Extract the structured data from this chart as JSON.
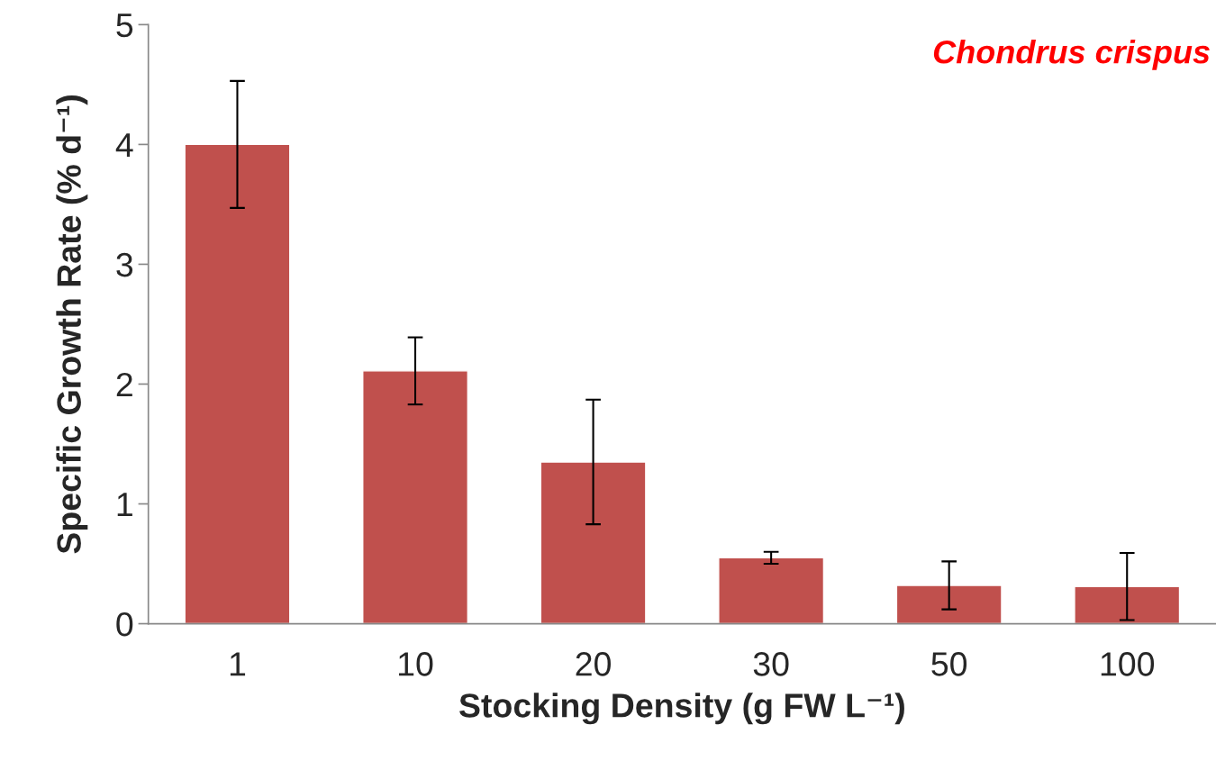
{
  "chart_data": {
    "type": "bar",
    "annotations": [
      "Chondrus crispus"
    ],
    "xlabel": "Stocking Density (g FW L⁻¹)",
    "ylabel": "Specific Growth Rate (% d⁻¹)",
    "categories": [
      "1",
      "10",
      "20",
      "30",
      "50",
      "100"
    ],
    "values": [
      4.0,
      2.11,
      1.35,
      0.55,
      0.32,
      0.31
    ],
    "errors": [
      0.53,
      0.28,
      0.52,
      0.05,
      0.2,
      0.28
    ],
    "color": "#c0504d",
    "ylim": [
      0,
      5
    ],
    "yticks": [
      0,
      1,
      2,
      3,
      4,
      5
    ],
    "grid": false,
    "legend": false
  }
}
